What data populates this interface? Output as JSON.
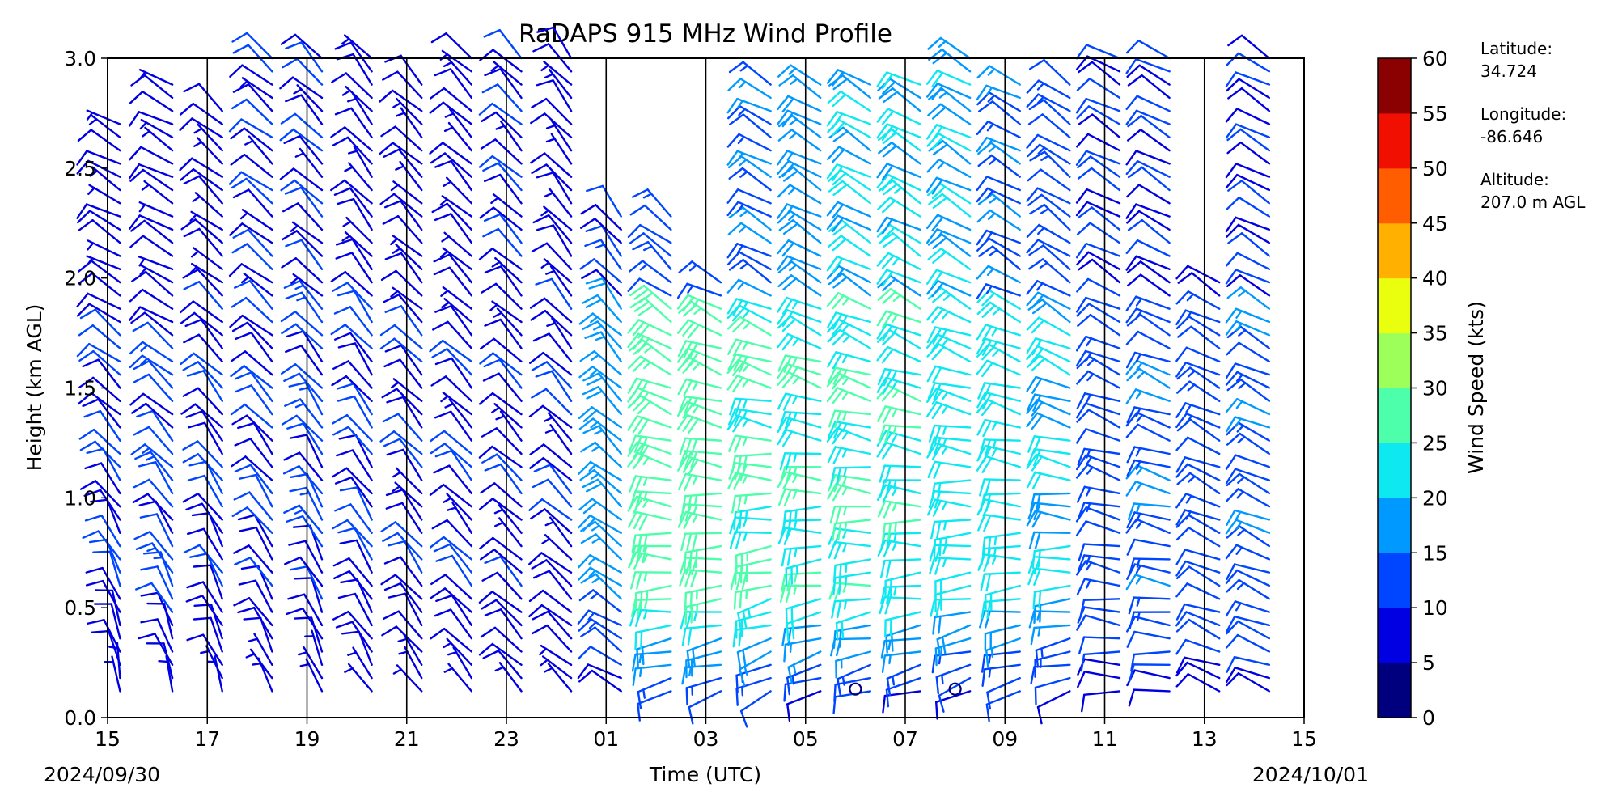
{
  "chart_data": {
    "type": "wind-barb",
    "title": "RaDAPS 915 MHz Wind Profile",
    "xlabel": "Time (UTC)",
    "ylabel": "Height (km AGL)",
    "xticks": [
      "15",
      "17",
      "19",
      "21",
      "23",
      "01",
      "03",
      "05",
      "07",
      "09",
      "11",
      "13",
      "15"
    ],
    "xlim_hours": [
      0,
      24
    ],
    "ylim": [
      0.0,
      3.0
    ],
    "yticks": [
      "0.0",
      "0.5",
      "1.0",
      "1.5",
      "2.0",
      "2.5",
      "3.0"
    ],
    "start_date": "2024/09/30",
    "end_date": "2024/10/01",
    "colorbar": {
      "label": "Wind Speed (kts)",
      "ticks": [
        "0",
        "5",
        "10",
        "15",
        "20",
        "25",
        "30",
        "35",
        "40",
        "45",
        "50",
        "55",
        "60"
      ],
      "colors": [
        "#00007f",
        "#0000e3",
        "#0045ff",
        "#0099ff",
        "#0ee8f1",
        "#4dffaa",
        "#9cff5a",
        "#eaff0d",
        "#ffb000",
        "#ff5d00",
        "#f00f00",
        "#8b0000"
      ]
    },
    "site": {
      "latitude_label": "Latitude:",
      "latitude": "34.724",
      "longitude_label": "Longitude:",
      "longitude": "-86.646",
      "altitude_label": "Altitude:",
      "altitude": "207.0 m AGL"
    },
    "calm_markers": [
      {
        "hour": 15.0,
        "height_km": 0.13
      },
      {
        "hour": 17.0,
        "height_km": 0.13
      }
    ],
    "profiles": [
      {
        "hour": 0.25,
        "top_km": 2.7,
        "dir_low": 350,
        "dir_high": 300,
        "spd_low": 6,
        "spd_mid": 10,
        "spd_high": 8
      },
      {
        "hour": 1.3,
        "top_km": 2.9,
        "dir_low": 345,
        "dir_high": 300,
        "spd_low": 6,
        "spd_mid": 11,
        "spd_high": 8
      },
      {
        "hour": 2.3,
        "top_km": 2.8,
        "dir_low": 340,
        "dir_high": 310,
        "spd_low": 6,
        "spd_mid": 10,
        "spd_high": 8
      },
      {
        "hour": 3.3,
        "top_km": 3.0,
        "dir_low": 335,
        "dir_high": 310,
        "spd_low": 5,
        "spd_mid": 10,
        "spd_high": 9
      },
      {
        "hour": 4.3,
        "top_km": 3.0,
        "dir_low": 340,
        "dir_high": 315,
        "spd_low": 5,
        "spd_mid": 11,
        "spd_high": 9
      },
      {
        "hour": 5.3,
        "top_km": 3.0,
        "dir_low": 330,
        "dir_high": 320,
        "spd_low": 6,
        "spd_mid": 10,
        "spd_high": 8
      },
      {
        "hour": 6.3,
        "top_km": 2.9,
        "dir_low": 325,
        "dir_high": 315,
        "spd_low": 6,
        "spd_mid": 9,
        "spd_high": 8
      },
      {
        "hour": 7.3,
        "top_km": 3.0,
        "dir_low": 320,
        "dir_high": 315,
        "spd_low": 6,
        "spd_mid": 9,
        "spd_high": 8
      },
      {
        "hour": 8.3,
        "top_km": 3.0,
        "dir_low": 315,
        "dir_high": 315,
        "spd_low": 7,
        "spd_mid": 9,
        "spd_high": 9
      },
      {
        "hour": 9.3,
        "top_km": 3.0,
        "dir_low": 310,
        "dir_high": 320,
        "spd_low": 6,
        "spd_mid": 9,
        "spd_high": 8
      },
      {
        "hour": 10.3,
        "top_km": 2.3,
        "dir_low": 300,
        "dir_high": 320,
        "spd_low": 6,
        "spd_mid": 17,
        "spd_high": 11
      },
      {
        "hour": 11.3,
        "top_km": 2.3,
        "dir_low": 250,
        "dir_high": 310,
        "spd_low": 7,
        "spd_mid": 27,
        "spd_high": 12
      },
      {
        "hour": 12.3,
        "top_km": 2.0,
        "dir_low": 250,
        "dir_high": 300,
        "spd_low": 8,
        "spd_mid": 27,
        "spd_high": 12
      },
      {
        "hour": 13.3,
        "top_km": 2.9,
        "dir_low": 240,
        "dir_high": 300,
        "spd_low": 7,
        "spd_mid": 26,
        "spd_high": 14
      },
      {
        "hour": 14.3,
        "top_km": 2.9,
        "dir_low": 245,
        "dir_high": 300,
        "spd_low": 6,
        "spd_mid": 24,
        "spd_high": 17
      },
      {
        "hour": 15.3,
        "top_km": 2.9,
        "dir_low": 250,
        "dir_high": 300,
        "spd_low": 7,
        "spd_mid": 25,
        "spd_high": 20
      },
      {
        "hour": 16.3,
        "top_km": 2.9,
        "dir_low": 250,
        "dir_high": 300,
        "spd_low": 6,
        "spd_mid": 24,
        "spd_high": 21
      },
      {
        "hour": 17.3,
        "top_km": 3.0,
        "dir_low": 245,
        "dir_high": 300,
        "spd_low": 6,
        "spd_mid": 23,
        "spd_high": 19
      },
      {
        "hour": 18.3,
        "top_km": 2.9,
        "dir_low": 250,
        "dir_high": 300,
        "spd_low": 7,
        "spd_mid": 22,
        "spd_high": 14
      },
      {
        "hour": 19.3,
        "top_km": 2.9,
        "dir_low": 250,
        "dir_high": 305,
        "spd_low": 7,
        "spd_mid": 20,
        "spd_high": 12
      },
      {
        "hour": 20.3,
        "top_km": 3.0,
        "dir_low": 270,
        "dir_high": 300,
        "spd_low": 7,
        "spd_mid": 13,
        "spd_high": 10
      },
      {
        "hour": 21.3,
        "top_km": 3.0,
        "dir_low": 270,
        "dir_high": 300,
        "spd_low": 8,
        "spd_mid": 14,
        "spd_high": 10
      },
      {
        "hour": 22.3,
        "top_km": 2.0,
        "dir_low": 290,
        "dir_high": 300,
        "spd_low": 8,
        "spd_mid": 12,
        "spd_high": 10
      },
      {
        "hour": 23.3,
        "top_km": 3.0,
        "dir_low": 290,
        "dir_high": 300,
        "spd_low": 8,
        "spd_mid": 14,
        "spd_high": 10
      }
    ]
  }
}
